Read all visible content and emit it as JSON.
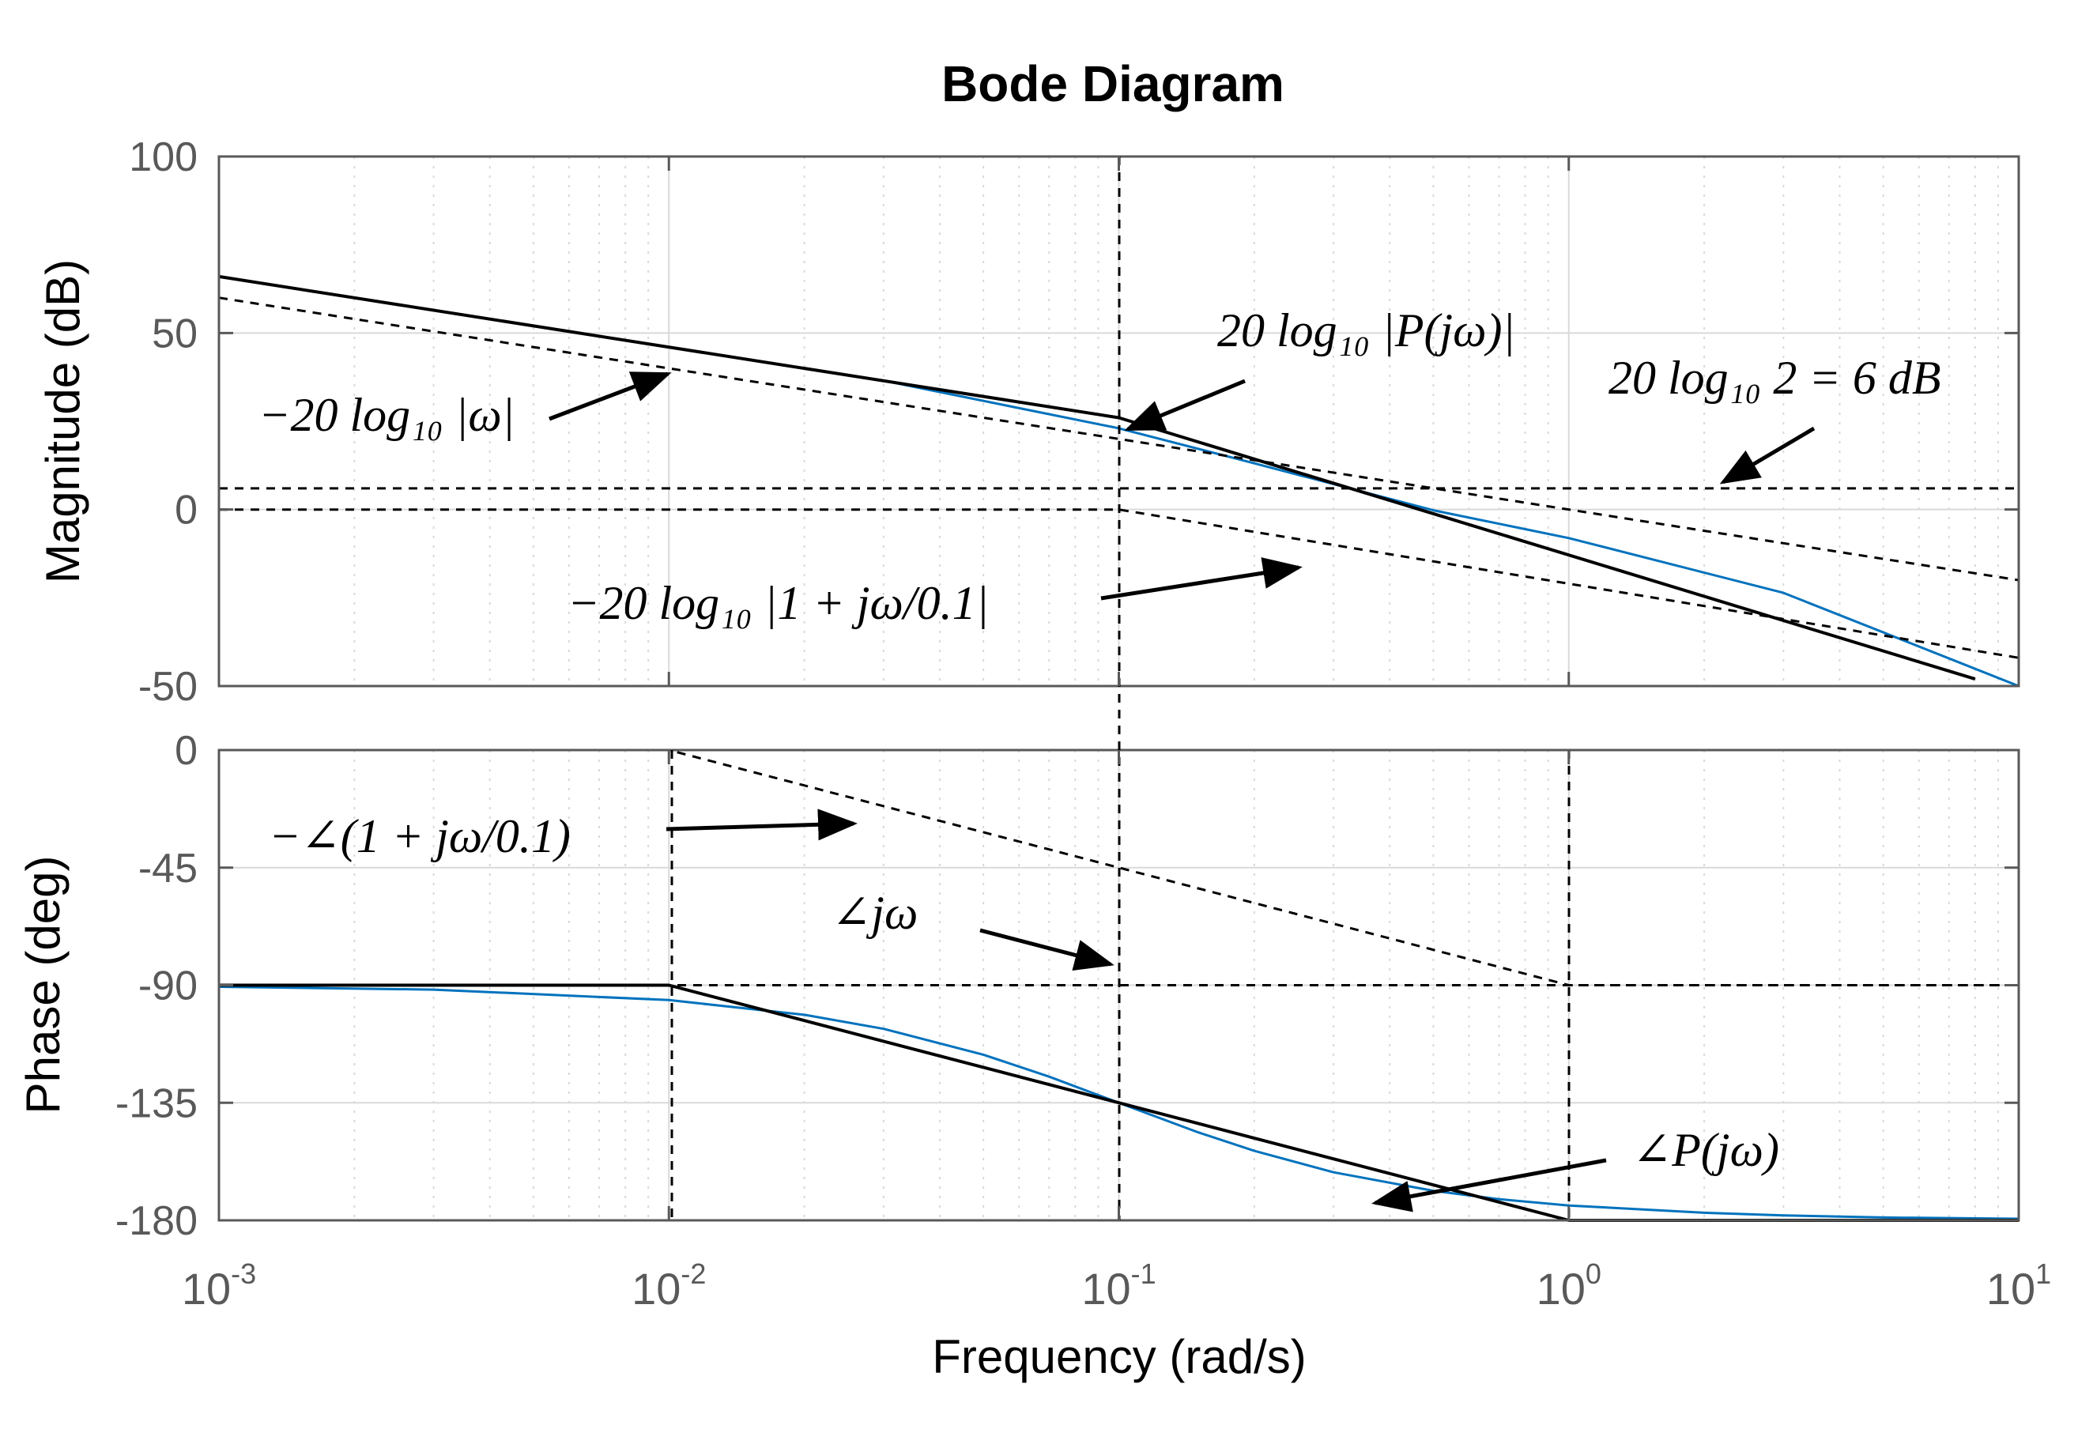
{
  "chart_data": {
    "type": "line",
    "title": "Bode Diagram",
    "xlabel": "Frequency  (rad/s)",
    "xscale": "log",
    "xlim": [
      0.001,
      10
    ],
    "x_ticks": [
      {
        "base": "10",
        "exp": "-3"
      },
      {
        "base": "10",
        "exp": "-2"
      },
      {
        "base": "10",
        "exp": "-1"
      },
      {
        "base": "10",
        "exp": "0"
      },
      {
        "base": "10",
        "exp": "1"
      }
    ],
    "grid": true,
    "colors": {
      "exact": "#0072bd",
      "asymptote": "#000000",
      "axes": "#595959",
      "grid": "#d9d9d9"
    },
    "magnitude": {
      "ylabel": "Magnitude (dB)",
      "ylim": [
        -50,
        100
      ],
      "yticks": [
        "100",
        "50",
        "0",
        "-50"
      ],
      "series": [
        {
          "style": "solid",
          "color": "#0072bd",
          "x": [
            0.001,
            0.003,
            0.01,
            0.03,
            0.1,
            0.2,
            0.5,
            1,
            3,
            10
          ],
          "y": [
            66,
            56.5,
            46,
            36.5,
            23,
            13.1,
            -0.2,
            -8.1,
            -23.6,
            -50
          ]
        },
        {
          "style": "solid",
          "color": "#000000",
          "x": [
            0.001,
            0.1,
            8
          ],
          "y": [
            66,
            26,
            -48
          ]
        },
        {
          "style": "dashed",
          "color": "#000000",
          "x": [
            0.001,
            10
          ],
          "y": [
            60,
            -20
          ]
        },
        {
          "style": "dashed",
          "color": "#000000",
          "x": [
            0.001,
            0.1,
            10
          ],
          "y": [
            0,
            0,
            -42
          ]
        },
        {
          "style": "dashed",
          "color": "#000000",
          "x": [
            0.001,
            10
          ],
          "y": [
            6,
            6
          ]
        }
      ]
    },
    "phase": {
      "ylabel": "Phase (deg)",
      "ylim": [
        -180,
        0
      ],
      "yticks": [
        "0",
        "-45",
        "-90",
        "-135",
        "-180"
      ],
      "series": [
        {
          "style": "solid",
          "color": "#0072bd",
          "x": [
            0.001,
            0.003,
            0.01,
            0.02,
            0.03,
            0.05,
            0.07,
            0.1,
            0.15,
            0.2,
            0.3,
            0.5,
            0.7,
            1,
            2,
            3,
            5,
            10
          ],
          "y": [
            -90.6,
            -91.7,
            -95.7,
            -101.3,
            -106.7,
            -116.6,
            -125,
            -135,
            -146.3,
            -153.4,
            -161.6,
            -168.7,
            -171.9,
            -174.3,
            -177.1,
            -178.1,
            -178.9,
            -179.4
          ]
        },
        {
          "style": "solid",
          "color": "#000000",
          "x": [
            0.001,
            0.01,
            1,
            10
          ],
          "y": [
            -90,
            -90,
            -180,
            -180
          ]
        },
        {
          "style": "dashed",
          "color": "#000000",
          "x": [
            0.001,
            0.01,
            1,
            10
          ],
          "y": [
            0,
            0,
            -90,
            -90
          ]
        },
        {
          "style": "dashed",
          "color": "#000000",
          "x": [
            0.001,
            10
          ],
          "y": [
            -90,
            -90
          ]
        }
      ]
    },
    "annotations": [
      {
        "text": "−20 log₁₀ |ω|"
      },
      {
        "text": "20 log₁₀ |P(jω)|"
      },
      {
        "text": "20 log₁₀ 2 = 6 dB"
      },
      {
        "text": "−20 log₁₀ |1 + jω/0.1|"
      },
      {
        "text": "−∠(1 + jω/0.1)"
      },
      {
        "text": "∠jω"
      },
      {
        "text": "∠P(jω)"
      }
    ]
  }
}
